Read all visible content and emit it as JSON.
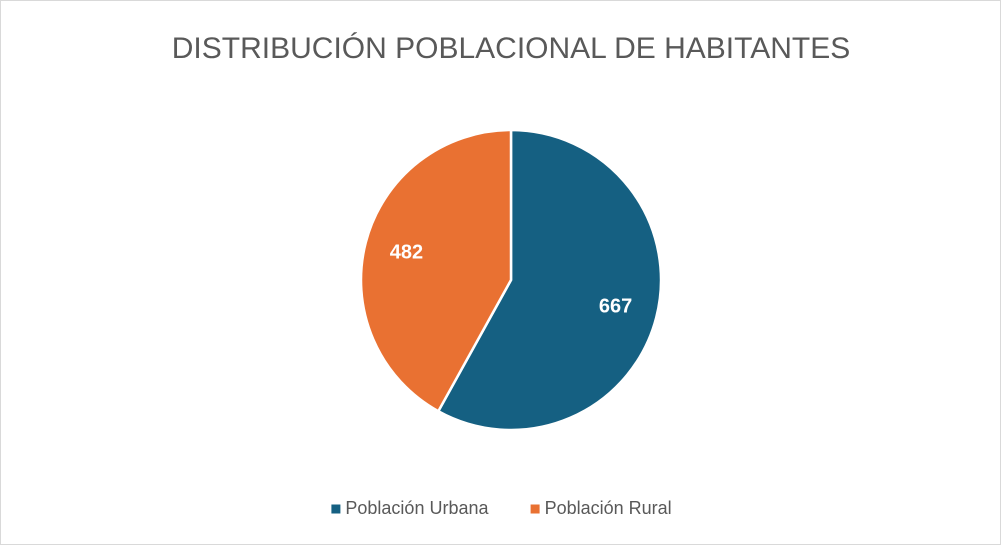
{
  "chart_data": {
    "type": "pie",
    "title": "DISTRIBUCIÓN POBLACIONAL DE HABITANTES",
    "categories": [
      "Población Urbana",
      "Población Rural"
    ],
    "values": [
      667,
      482
    ],
    "colors": [
      "#156082",
      "#e97132"
    ],
    "legend": "bottom"
  }
}
